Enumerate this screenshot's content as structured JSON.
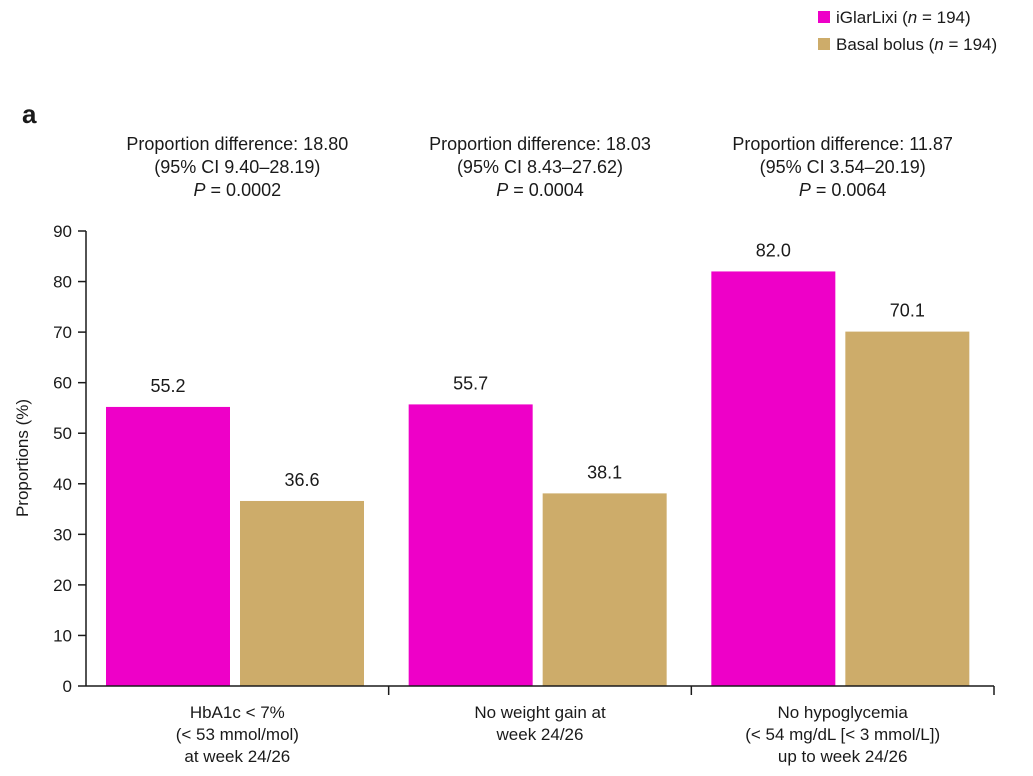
{
  "panel_label": "a",
  "colors": {
    "iglarlixi": "#ee00c8",
    "basal_bolus": "#cdac6a",
    "axis": "#1a1a1a"
  },
  "chart_data": {
    "type": "bar",
    "title": "",
    "ylabel": "Proportions (%)",
    "xlabel": "",
    "ylim": [
      0,
      90
    ],
    "yticks": [
      0,
      10,
      20,
      30,
      40,
      50,
      60,
      70,
      80,
      90
    ],
    "grid": false,
    "legend_position": "top-right",
    "categories": [
      [
        "HbA1c < 7%",
        "(< 53 mmol/mol)",
        "at week 24/26"
      ],
      [
        "No weight gain at",
        "week 24/26"
      ],
      [
        "No hypoglycemia",
        "(< 54 mg/dL [< 3 mmol/L])",
        "up to week 24/26"
      ]
    ],
    "series": [
      {
        "name": "iGlarLixi",
        "n": "194",
        "values": [
          55.2,
          55.7,
          82.0
        ],
        "labels": [
          "55.2",
          "55.7",
          "82.0"
        ]
      },
      {
        "name": "Basal bolus",
        "n": "194",
        "values": [
          36.6,
          38.1,
          70.1
        ],
        "labels": [
          "36.6",
          "38.1",
          "70.1"
        ]
      }
    ],
    "annotations": [
      {
        "line1": "Proportion difference: 18.80",
        "line2": "(95% CI 9.40–28.19)",
        "p_symbol": "P",
        "p_value": "= 0.0002"
      },
      {
        "line1": "Proportion difference: 18.03",
        "line2": "(95% CI 8.43–27.62)",
        "p_symbol": "P",
        "p_value": "= 0.0004"
      },
      {
        "line1": "Proportion difference: 11.87",
        "line2": "(95% CI 3.54–20.19)",
        "p_symbol": "P",
        "p_value": "= 0.0064"
      }
    ]
  }
}
